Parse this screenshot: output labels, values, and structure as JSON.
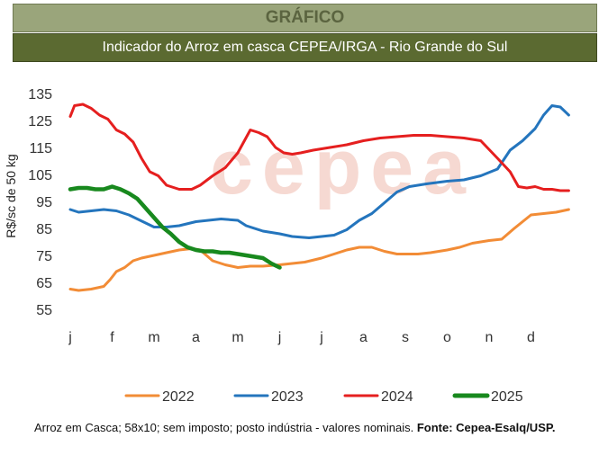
{
  "header": {
    "title": "GRÁFICO",
    "subtitle": "Indicador do Arroz em casca CEPEA/IRGA - Rio Grande do Sul"
  },
  "watermark": "cepea",
  "footer": {
    "note": "Arroz em Casca; 58x10; sem imposto; posto indústria - valores nominais. ",
    "source": "Fonte: Cepea-Esalq/USP."
  },
  "chart_data": {
    "type": "line",
    "ylabel": "R$/sc de 50 kg",
    "ylim": [
      55,
      135
    ],
    "yticks": [
      135,
      125,
      115,
      105,
      95,
      85,
      75,
      65,
      55
    ],
    "categories": [
      "j",
      "f",
      "m",
      "a",
      "m",
      "j",
      "j",
      "a",
      "s",
      "o",
      "n",
      "d"
    ],
    "xlim": [
      0,
      12
    ],
    "grid": false,
    "legend": "bottom",
    "series": [
      {
        "name": "2022",
        "color": "#f28c36",
        "x": [
          0,
          0.2,
          0.5,
          0.8,
          0.95,
          1.1,
          1.3,
          1.5,
          1.7,
          2,
          2.3,
          2.6,
          2.9,
          3.1,
          3.4,
          3.7,
          4,
          4.3,
          4.6,
          5,
          5.3,
          5.6,
          6,
          6.3,
          6.6,
          6.9,
          7.2,
          7.5,
          7.8,
          8,
          8.3,
          8.6,
          9,
          9.3,
          9.6,
          10,
          10.3,
          10.6,
          11,
          11.3,
          11.6,
          11.9
        ],
        "y": [
          62.5,
          62,
          62.5,
          63.5,
          66,
          69,
          70.5,
          73,
          74,
          75,
          76,
          77,
          77.5,
          77,
          73,
          71.5,
          70.5,
          71,
          71,
          71.5,
          72,
          72.5,
          74,
          75.5,
          77,
          78,
          78,
          76.5,
          75.5,
          75.5,
          75.5,
          76,
          77,
          78,
          79.5,
          80.5,
          81,
          85,
          90,
          90.5,
          91,
          92
        ]
      },
      {
        "name": "2023",
        "color": "#2475bd",
        "x": [
          0,
          0.2,
          0.5,
          0.8,
          1.1,
          1.4,
          1.8,
          2,
          2.3,
          2.6,
          3,
          3.3,
          3.6,
          4,
          4.2,
          4.6,
          5,
          5.3,
          5.7,
          6,
          6.3,
          6.6,
          6.9,
          7.2,
          7.5,
          7.8,
          8.1,
          8.5,
          9,
          9.4,
          9.8,
          10.2,
          10.5,
          10.8,
          11.1,
          11.3,
          11.5,
          11.7,
          11.9
        ],
        "y": [
          92,
          91,
          91.5,
          92,
          91.5,
          90,
          87,
          85.5,
          85.5,
          86,
          87.5,
          88,
          88.5,
          88,
          86,
          84,
          83,
          82,
          81.5,
          82,
          82.5,
          84.5,
          88,
          90.5,
          94.5,
          98.5,
          100.5,
          101.5,
          102.5,
          103,
          104.5,
          107,
          114,
          117.5,
          122,
          127,
          130.5,
          130,
          127
        ]
      },
      {
        "name": "2024",
        "color": "#e51f1f",
        "x": [
          0,
          0.1,
          0.3,
          0.5,
          0.7,
          0.9,
          1.1,
          1.3,
          1.5,
          1.7,
          1.9,
          2.1,
          2.3,
          2.6,
          2.9,
          3.1,
          3.4,
          3.7,
          4,
          4.3,
          4.5,
          4.7,
          4.9,
          5.1,
          5.3,
          5.5,
          5.8,
          6.2,
          6.6,
          7,
          7.4,
          7.8,
          8.2,
          8.6,
          9,
          9.4,
          9.8,
          10.2,
          10.5,
          10.7,
          10.9,
          11.1,
          11.3,
          11.5,
          11.7,
          11.9
        ],
        "y": [
          126.5,
          130.5,
          131,
          129.5,
          127,
          125.5,
          121.5,
          120,
          117,
          111,
          106,
          104.5,
          101,
          99.5,
          99.5,
          101,
          104.5,
          107.5,
          113,
          121.5,
          120.5,
          119,
          115,
          113,
          112.5,
          113,
          114,
          115,
          116,
          117.5,
          118.5,
          119,
          119.5,
          119.5,
          119,
          118.5,
          117.5,
          111,
          106,
          100.5,
          100,
          100.5,
          99.5,
          99.5,
          99,
          99
        ]
      },
      {
        "name": "2025",
        "color": "#18891e",
        "x": [
          0,
          0.2,
          0.4,
          0.6,
          0.8,
          1,
          1.2,
          1.4,
          1.6,
          1.8,
          2,
          2.2,
          2.4,
          2.6,
          2.8,
          3,
          3.2,
          3.4,
          3.6,
          3.8,
          4,
          4.2,
          4.4,
          4.6,
          4.8,
          5
        ],
        "y": [
          99.5,
          100,
          100,
          99.5,
          99.5,
          100.5,
          99.5,
          98,
          96,
          92.5,
          89,
          85.5,
          83,
          80,
          78,
          77,
          76.5,
          76.5,
          76,
          76,
          75.5,
          75,
          74.5,
          74,
          72,
          70.5
        ]
      }
    ]
  }
}
